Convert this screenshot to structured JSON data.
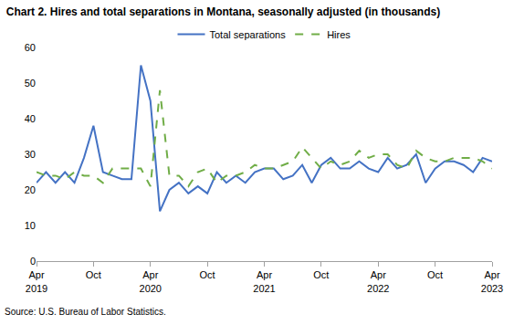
{
  "chart_data": {
    "type": "line",
    "title": "Chart 2. Hires and total separations in Montana, seasonally adjusted (in thousands)",
    "annotations": [
      "Source: U.S. Bureau of Labor Statistics."
    ],
    "categories": [
      "Apr 2019",
      null,
      null,
      null,
      null,
      null,
      "Oct",
      null,
      null,
      null,
      null,
      null,
      "Apr 2020",
      null,
      null,
      null,
      null,
      null,
      "Oct",
      null,
      null,
      null,
      null,
      null,
      "Apr 2021",
      null,
      null,
      null,
      null,
      null,
      "Oct",
      null,
      null,
      null,
      null,
      null,
      "Apr 2022",
      null,
      null,
      null,
      null,
      null,
      "Oct",
      null,
      null,
      null,
      null,
      null,
      "Apr 2023"
    ],
    "series": [
      {
        "name": "Total separations",
        "color": "#4472c4",
        "line_style": "solid",
        "values": [
          22,
          25,
          22,
          25,
          22,
          29,
          38,
          25,
          24,
          23,
          23,
          55,
          45,
          14,
          20,
          22,
          19,
          21,
          19,
          25,
          22,
          24,
          22,
          25,
          26,
          26,
          23,
          24,
          27,
          22,
          27,
          29,
          26,
          26,
          28,
          26,
          25,
          29,
          26,
          27,
          30,
          22,
          26,
          28,
          28,
          27,
          25,
          29,
          28
        ]
      },
      {
        "name": "Hires",
        "color": "#70ad47",
        "line_style": "dashed",
        "values": [
          25,
          24,
          24,
          23,
          25,
          24,
          24,
          22,
          26,
          26,
          26,
          26,
          21,
          48,
          24,
          24,
          21,
          25,
          26,
          22,
          24,
          24,
          25,
          27,
          26,
          26,
          27,
          28,
          32,
          29,
          26,
          28,
          27,
          28,
          31,
          29,
          30,
          30,
          27,
          26,
          31,
          29,
          28,
          28,
          29,
          29,
          29,
          28,
          26
        ]
      }
    ],
    "ylim": [
      0,
      60
    ],
    "yticks": [
      0,
      10,
      20,
      30,
      40,
      50,
      60
    ],
    "grid": false,
    "legend": "top"
  }
}
